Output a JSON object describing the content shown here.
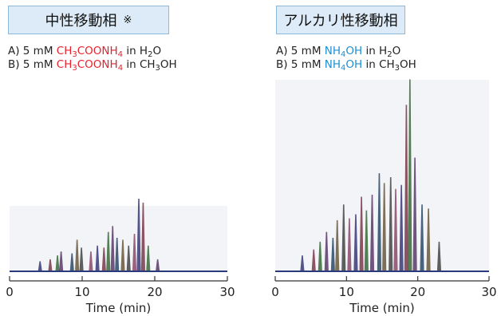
{
  "panels": [
    {
      "title": "中性移動相",
      "title_mark": "※",
      "phase_a": {
        "label": "A) 5 mM ",
        "reagent": [
          "CH",
          "3",
          "COONH",
          "4"
        ],
        "suffix": " in H",
        "suffix_sub": "2",
        "suffix_end": "O"
      },
      "phase_b": {
        "label": "B) 5 mM ",
        "reagent": [
          "CH",
          "3",
          "COONH",
          "4"
        ],
        "suffix": " in CH",
        "suffix_sub": "3",
        "suffix_end": "OH"
      }
    },
    {
      "title": "アルカリ性移動相",
      "title_mark": "",
      "phase_a": {
        "label": "A) 5 mM ",
        "reagent": [
          "NH",
          "4",
          "OH",
          ""
        ],
        "suffix": " in H",
        "suffix_sub": "2",
        "suffix_end": "O"
      },
      "phase_b": {
        "label": "B) 5 mM ",
        "reagent": [
          "NH",
          "4",
          "OH",
          ""
        ],
        "suffix": " in CH",
        "suffix_sub": "3",
        "suffix_end": "OH"
      }
    }
  ],
  "colors": {
    "neutral_reagent": "#e8202c",
    "alkaline_reagent": "#1f8fd2",
    "panel_fill": "#dcebf7",
    "panel_border": "#8fb8d6"
  },
  "chart_data": [
    {
      "type": "line",
      "title": "",
      "xlabel": "Time (min)",
      "ylabel": "",
      "xlim": [
        0,
        30
      ],
      "xticks": [
        0,
        10,
        20,
        30
      ],
      "ylim": [
        0,
        1
      ],
      "peaks": [
        {
          "x": 4.2,
          "y": 0.05
        },
        {
          "x": 5.6,
          "y": 0.06
        },
        {
          "x": 6.6,
          "y": 0.08
        },
        {
          "x": 7.1,
          "y": 0.1
        },
        {
          "x": 8.6,
          "y": 0.09
        },
        {
          "x": 9.3,
          "y": 0.16
        },
        {
          "x": 9.9,
          "y": 0.12
        },
        {
          "x": 11.2,
          "y": 0.1
        },
        {
          "x": 12.1,
          "y": 0.13
        },
        {
          "x": 13.0,
          "y": 0.12
        },
        {
          "x": 13.6,
          "y": 0.2
        },
        {
          "x": 14.2,
          "y": 0.23
        },
        {
          "x": 14.8,
          "y": 0.17
        },
        {
          "x": 15.6,
          "y": 0.16
        },
        {
          "x": 16.4,
          "y": 0.13
        },
        {
          "x": 17.2,
          "y": 0.19
        },
        {
          "x": 17.8,
          "y": 0.37
        },
        {
          "x": 18.4,
          "y": 0.35
        },
        {
          "x": 19.1,
          "y": 0.13
        },
        {
          "x": 20.4,
          "y": 0.06
        }
      ]
    },
    {
      "type": "line",
      "title": "",
      "xlabel": "Time (min)",
      "ylabel": "",
      "xlim": [
        0,
        30
      ],
      "xticks": [
        0,
        10,
        20,
        30
      ],
      "ylim": [
        0,
        1
      ],
      "peaks": [
        {
          "x": 3.8,
          "y": 0.08
        },
        {
          "x": 5.4,
          "y": 0.11
        },
        {
          "x": 6.3,
          "y": 0.15
        },
        {
          "x": 7.2,
          "y": 0.2
        },
        {
          "x": 8.1,
          "y": 0.17
        },
        {
          "x": 8.7,
          "y": 0.26
        },
        {
          "x": 9.6,
          "y": 0.34
        },
        {
          "x": 10.4,
          "y": 0.27
        },
        {
          "x": 11.3,
          "y": 0.29
        },
        {
          "x": 12.1,
          "y": 0.38
        },
        {
          "x": 12.8,
          "y": 0.31
        },
        {
          "x": 13.6,
          "y": 0.39
        },
        {
          "x": 14.6,
          "y": 0.5
        },
        {
          "x": 15.3,
          "y": 0.45
        },
        {
          "x": 16.2,
          "y": 0.48
        },
        {
          "x": 16.9,
          "y": 0.42
        },
        {
          "x": 17.7,
          "y": 0.44
        },
        {
          "x": 18.4,
          "y": 0.85
        },
        {
          "x": 18.9,
          "y": 0.98
        },
        {
          "x": 19.6,
          "y": 0.58
        },
        {
          "x": 20.6,
          "y": 0.34
        },
        {
          "x": 21.5,
          "y": 0.32
        },
        {
          "x": 23.0,
          "y": 0.15
        }
      ]
    }
  ]
}
